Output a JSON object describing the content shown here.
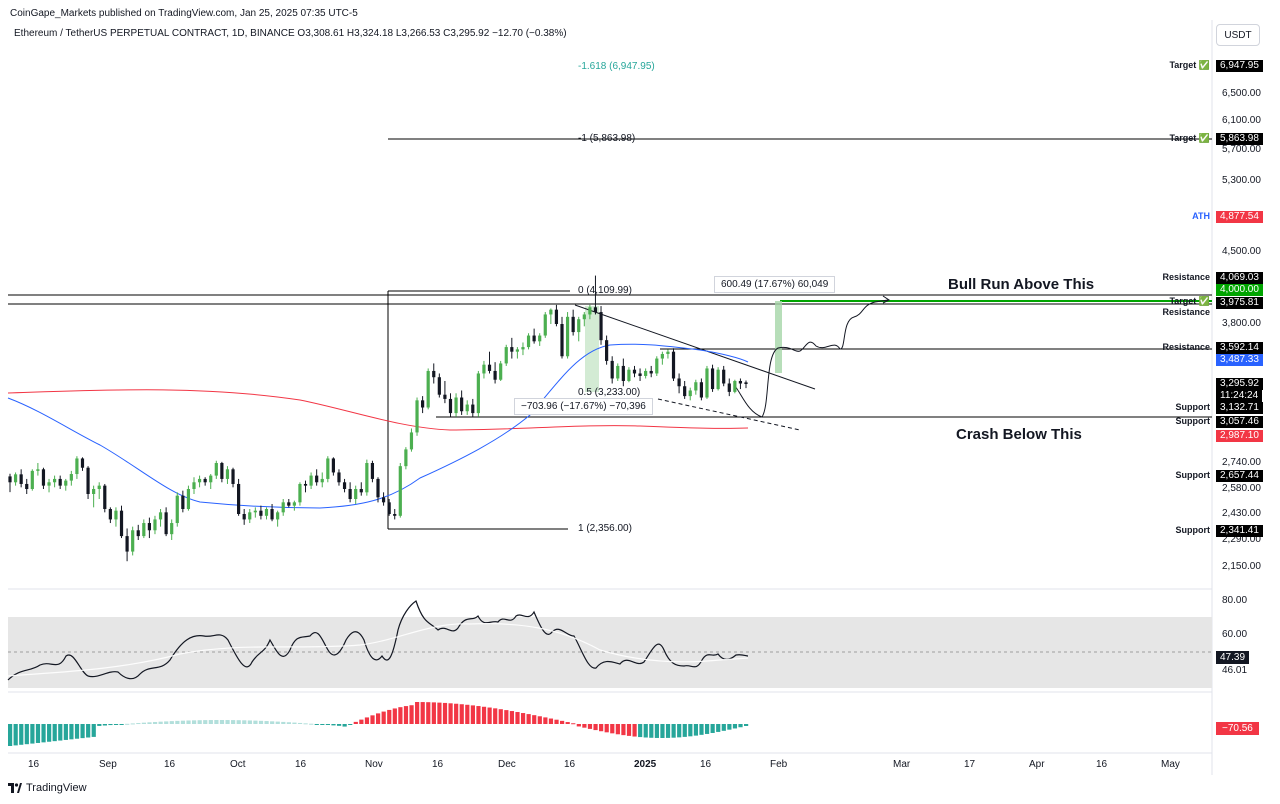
{
  "publisher": "CoinGape_Markets published on TradingView.com, Jan 25, 2025 07:35 UTC-5",
  "symbol_line": "Ethereum / TetherUS PERPETUAL CONTRACT, 1D, BINANCE",
  "ohlc": {
    "o": "O3,308.61",
    "h": "H3,324.18",
    "l": "L3,266.53",
    "c": "C3,295.92",
    "chg": "−12.70 (−0.38%)"
  },
  "currency_button": "USDT",
  "footer_brand": "TradingView",
  "colors": {
    "up": "#4caf50",
    "down": "#131722",
    "ma_fast": "#2962ff",
    "ma_slow": "#f23645",
    "target_box": "#00a400",
    "resistance_box": "#000000",
    "blue_box": "#2962ff",
    "red_box": "#f23645"
  },
  "chart_data": {
    "type": "candlestick",
    "price_axis": {
      "ticks": [
        "6,500.00",
        "6,100.00",
        "5,700.00",
        "5,300.00",
        "4,500.00",
        "3,800.00",
        "2,740.00",
        "2,580.00",
        "2,430.00",
        "2,290.00",
        "2,150.00"
      ],
      "boxes": [
        {
          "label": "Target ✅",
          "value": "6,947.95",
          "color": "#000000"
        },
        {
          "label": "Target ✅",
          "value": "5,863.98",
          "color": "#000000"
        },
        {
          "label": "ATH",
          "value": "4,877.54",
          "color": "#f23645"
        },
        {
          "label": "Resistance",
          "value": "4,069.03",
          "color": "#000000"
        },
        {
          "label": "",
          "value": "4,000.00",
          "color": "#00a400"
        },
        {
          "label": "Target ✅ Resistance",
          "value": "3,975.81",
          "color": "#000000"
        },
        {
          "label": "Resistance",
          "value": "3,592.14",
          "color": "#000000"
        },
        {
          "label": "",
          "value": "3,487.33",
          "color": "#2962ff"
        },
        {
          "label": "",
          "value": "3,295.92",
          "color": "#000000"
        },
        {
          "label": "",
          "value": "11:24:24",
          "color": "#000000"
        },
        {
          "label": "Support",
          "value": "3,132.71",
          "color": "#000000"
        },
        {
          "label": "Support",
          "value": "3,057.46",
          "color": "#000000"
        },
        {
          "label": "",
          "value": "2,987.10",
          "color": "#f23645"
        },
        {
          "label": "Support",
          "value": "2,657.44",
          "color": "#000000"
        },
        {
          "label": "Support",
          "value": "2,341.41",
          "color": "#000000"
        }
      ]
    },
    "fib_labels": [
      "-1.618 (6,947.95)",
      "-1 (5,863.98)",
      "0 (4,109.99)",
      "0.5 (3,233.00)",
      "1 (2,356.00)"
    ],
    "measure_labels": [
      "600.49 (17.67%) 60,049",
      "−703.96 (−17.67%) −70,396"
    ],
    "annotations": [
      "Bull Run Above This",
      "Crash Below This"
    ],
    "x_axis": [
      "16",
      "Sep",
      "16",
      "Oct",
      "16",
      "Nov",
      "16",
      "Dec",
      "16",
      "2025",
      "16",
      "Feb",
      "Mar",
      "17",
      "Apr",
      "16",
      "May"
    ],
    "rsi": {
      "ticks": [
        "80.00",
        "60.00",
        "46.01"
      ],
      "current": "47.39"
    },
    "macd": {
      "current": "−70.56"
    },
    "candles": [
      [
        2655,
        2672,
        2561,
        2620
      ],
      [
        2620,
        2680,
        2600,
        2668
      ],
      [
        2668,
        2700,
        2590,
        2610
      ],
      [
        2610,
        2640,
        2550,
        2580
      ],
      [
        2580,
        2700,
        2570,
        2690
      ],
      [
        2690,
        2740,
        2660,
        2700
      ],
      [
        2700,
        2710,
        2580,
        2600
      ],
      [
        2600,
        2640,
        2560,
        2620
      ],
      [
        2620,
        2660,
        2590,
        2640
      ],
      [
        2640,
        2660,
        2580,
        2600
      ],
      [
        2600,
        2640,
        2570,
        2630
      ],
      [
        2630,
        2690,
        2600,
        2670
      ],
      [
        2670,
        2800,
        2640,
        2780
      ],
      [
        2780,
        2790,
        2690,
        2710
      ],
      [
        2710,
        2720,
        2520,
        2550
      ],
      [
        2550,
        2600,
        2470,
        2580
      ],
      [
        2580,
        2620,
        2520,
        2600
      ],
      [
        2600,
        2610,
        2440,
        2460
      ],
      [
        2460,
        2470,
        2380,
        2400
      ],
      [
        2400,
        2470,
        2360,
        2450
      ],
      [
        2450,
        2480,
        2300,
        2310
      ],
      [
        2310,
        2350,
        2180,
        2230
      ],
      [
        2230,
        2360,
        2210,
        2340
      ],
      [
        2340,
        2370,
        2290,
        2310
      ],
      [
        2310,
        2400,
        2300,
        2380
      ],
      [
        2380,
        2410,
        2300,
        2340
      ],
      [
        2340,
        2420,
        2320,
        2400
      ],
      [
        2400,
        2460,
        2360,
        2440
      ],
      [
        2440,
        2470,
        2310,
        2320
      ],
      [
        2320,
        2400,
        2290,
        2380
      ],
      [
        2380,
        2560,
        2360,
        2540
      ],
      [
        2540,
        2570,
        2440,
        2460
      ],
      [
        2460,
        2600,
        2450,
        2580
      ],
      [
        2580,
        2650,
        2550,
        2620
      ],
      [
        2620,
        2660,
        2590,
        2640
      ],
      [
        2640,
        2650,
        2600,
        2620
      ],
      [
        2620,
        2670,
        2580,
        2660
      ],
      [
        2660,
        2760,
        2640,
        2740
      ],
      [
        2740,
        2750,
        2620,
        2640
      ],
      [
        2640,
        2720,
        2610,
        2700
      ],
      [
        2700,
        2710,
        2590,
        2610
      ],
      [
        2610,
        2640,
        2420,
        2430
      ],
      [
        2430,
        2460,
        2370,
        2400
      ],
      [
        2400,
        2460,
        2380,
        2440
      ],
      [
        2440,
        2470,
        2410,
        2450
      ],
      [
        2450,
        2480,
        2400,
        2420
      ],
      [
        2420,
        2470,
        2400,
        2460
      ],
      [
        2460,
        2490,
        2390,
        2400
      ],
      [
        2400,
        2450,
        2360,
        2440
      ],
      [
        2440,
        2520,
        2420,
        2500
      ],
      [
        2500,
        2520,
        2470,
        2480
      ],
      [
        2480,
        2510,
        2450,
        2500
      ],
      [
        2500,
        2620,
        2480,
        2610
      ],
      [
        2610,
        2630,
        2560,
        2600
      ],
      [
        2600,
        2680,
        2580,
        2660
      ],
      [
        2660,
        2700,
        2600,
        2620
      ],
      [
        2620,
        2680,
        2590,
        2640
      ],
      [
        2640,
        2800,
        2620,
        2780
      ],
      [
        2780,
        2790,
        2660,
        2680
      ],
      [
        2680,
        2700,
        2600,
        2620
      ],
      [
        2620,
        2640,
        2560,
        2580
      ],
      [
        2580,
        2620,
        2500,
        2520
      ],
      [
        2520,
        2600,
        2490,
        2580
      ],
      [
        2580,
        2620,
        2540,
        2560
      ],
      [
        2560,
        2770,
        2540,
        2740
      ],
      [
        2740,
        2760,
        2620,
        2640
      ],
      [
        2640,
        2650,
        2500,
        2530
      ],
      [
        2530,
        2560,
        2480,
        2500
      ],
      [
        2500,
        2520,
        2420,
        2430
      ],
      [
        2430,
        2460,
        2400,
        2420
      ],
      [
        2420,
        2740,
        2410,
        2720
      ],
      [
        2720,
        2880,
        2700,
        2860
      ],
      [
        2860,
        3020,
        2840,
        3000
      ],
      [
        3000,
        3200,
        2980,
        3180
      ],
      [
        3180,
        3210,
        3100,
        3130
      ],
      [
        3130,
        3420,
        3120,
        3400
      ],
      [
        3400,
        3460,
        3300,
        3350
      ],
      [
        3350,
        3380,
        3200,
        3220
      ],
      [
        3220,
        3320,
        3160,
        3190
      ],
      [
        3190,
        3230,
        3080,
        3100
      ],
      [
        3100,
        3230,
        3080,
        3200
      ],
      [
        3200,
        3250,
        3090,
        3110
      ],
      [
        3110,
        3180,
        3090,
        3150
      ],
      [
        3150,
        3190,
        3080,
        3100
      ],
      [
        3100,
        3400,
        3080,
        3380
      ],
      [
        3380,
        3480,
        3340,
        3450
      ],
      [
        3450,
        3560,
        3380,
        3400
      ],
      [
        3400,
        3470,
        3300,
        3330
      ],
      [
        3330,
        3480,
        3320,
        3460
      ],
      [
        3460,
        3620,
        3440,
        3600
      ],
      [
        3600,
        3680,
        3500,
        3560
      ],
      [
        3560,
        3600,
        3500,
        3580
      ],
      [
        3580,
        3640,
        3530,
        3600
      ],
      [
        3600,
        3720,
        3580,
        3700
      ],
      [
        3700,
        3760,
        3630,
        3650
      ],
      [
        3650,
        3720,
        3610,
        3700
      ],
      [
        3700,
        3900,
        3680,
        3880
      ],
      [
        3880,
        3930,
        3800,
        3920
      ],
      [
        3920,
        3960,
        3780,
        3800
      ],
      [
        3800,
        3860,
        3500,
        3520
      ],
      [
        3520,
        3900,
        3500,
        3860
      ],
      [
        3860,
        3920,
        3700,
        3730
      ],
      [
        3730,
        3860,
        3650,
        3840
      ],
      [
        3840,
        3900,
        3780,
        3880
      ],
      [
        3880,
        3960,
        3840,
        3940
      ],
      [
        3940,
        4109,
        3880,
        3900
      ],
      [
        3900,
        3950,
        3620,
        3660
      ],
      [
        3660,
        3700,
        3450,
        3480
      ],
      [
        3480,
        3520,
        3300,
        3340
      ],
      [
        3340,
        3460,
        3320,
        3440
      ],
      [
        3440,
        3500,
        3280,
        3320
      ],
      [
        3320,
        3430,
        3310,
        3410
      ],
      [
        3410,
        3440,
        3350,
        3380
      ],
      [
        3380,
        3420,
        3320,
        3360
      ],
      [
        3360,
        3420,
        3340,
        3400
      ],
      [
        3400,
        3440,
        3350,
        3380
      ],
      [
        3380,
        3520,
        3360,
        3500
      ],
      [
        3500,
        3560,
        3450,
        3540
      ],
      [
        3540,
        3580,
        3500,
        3560
      ],
      [
        3560,
        3590,
        3320,
        3340
      ],
      [
        3340,
        3380,
        3230,
        3280
      ],
      [
        3280,
        3320,
        3190,
        3210
      ],
      [
        3210,
        3270,
        3180,
        3250
      ],
      [
        3250,
        3330,
        3220,
        3310
      ],
      [
        3310,
        3340,
        3180,
        3200
      ],
      [
        3200,
        3440,
        3190,
        3420
      ],
      [
        3420,
        3450,
        3240,
        3260
      ],
      [
        3260,
        3430,
        3250,
        3410
      ],
      [
        3410,
        3440,
        3280,
        3300
      ],
      [
        3300,
        3340,
        3210,
        3240
      ],
      [
        3240,
        3330,
        3230,
        3320
      ],
      [
        3320,
        3340,
        3260,
        3300
      ],
      [
        3309,
        3324,
        3267,
        3296
      ]
    ]
  }
}
